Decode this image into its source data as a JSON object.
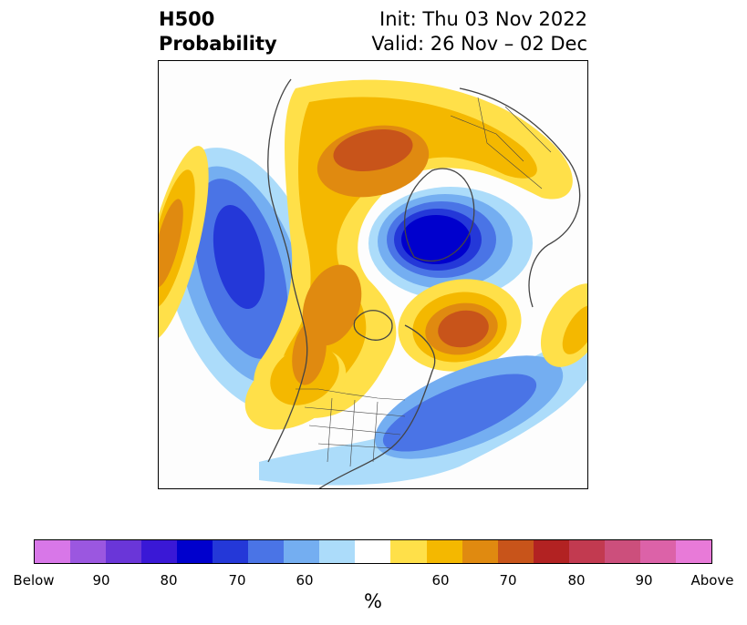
{
  "title": {
    "left_line1": "H500",
    "left_line2": "Probability",
    "right_line1": "Init: Thu 03 Nov 2022",
    "right_line2": "Valid: 26 Nov – 02 Dec"
  },
  "colorbar": {
    "label": "%",
    "ticks": [
      "Below",
      "90",
      "80",
      "70",
      "60",
      "60",
      "70",
      "80",
      "90",
      "Above"
    ],
    "colors": [
      "#d877e8",
      "#9b57e0",
      "#6a36d8",
      "#3a18d6",
      "#0000cd",
      "#2438d8",
      "#4a74e6",
      "#74aef1",
      "#acdcfa",
      "#ffffff",
      "#ffe049",
      "#f4b800",
      "#e08a10",
      "#c8541a",
      "#b22222",
      "#c23a50",
      "#cc4f7c",
      "#dc62a8",
      "#e87ad8"
    ]
  },
  "colors": {
    "blue_light": "#acdcfa",
    "blue_mid": "#74aef1",
    "blue_med": "#4a74e6",
    "blue_strong": "#2438d8",
    "blue_deep": "#0000cd",
    "yellow": "#ffe049",
    "gold": "#f4b800",
    "orange": "#e08a10",
    "rust": "#c8541a",
    "border": "#444444"
  }
}
